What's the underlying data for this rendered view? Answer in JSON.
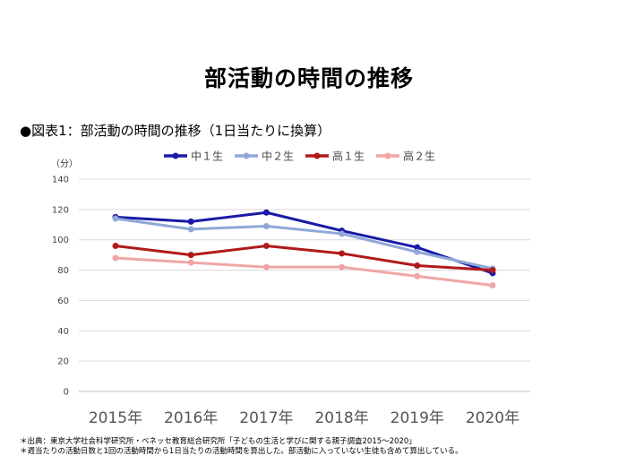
{
  "page": {
    "title": "部活動の時間の推移",
    "subtitle": "●図表1：部活動の時間の推移（1日当たりに換算）",
    "notes": [
      "＊出典：東京大学社会科学研究所・ベネッセ教育総合研究所「子どもの生活と学びに関する親子調査2015～2020」",
      "＊週当たりの活動日数と1回の活動時間から1日当たりの活動時間を算出した。部活動に入っていない生徒も含めて算出している。"
    ]
  },
  "chart_data": {
    "type": "line",
    "ylabel": "（分）",
    "ylim": [
      0,
      140
    ],
    "yticks": [
      0,
      20,
      40,
      60,
      80,
      100,
      120,
      140
    ],
    "categories": [
      "2015年",
      "2016年",
      "2017年",
      "2018年",
      "2019年",
      "2020年"
    ],
    "legend_position": "top",
    "grid": true,
    "series": [
      {
        "name": "中１生",
        "color": "#1a1aa6",
        "values": [
          115,
          112,
          118,
          106,
          95,
          78
        ]
      },
      {
        "name": "中２生",
        "color": "#8fa8d8",
        "values": [
          114,
          107,
          109,
          104,
          92,
          81
        ]
      },
      {
        "name": "高１生",
        "color": "#b01a1a",
        "values": [
          96,
          90,
          96,
          91,
          83,
          80
        ]
      },
      {
        "name": "高２生",
        "color": "#f0a6a6",
        "values": [
          88,
          85,
          82,
          82,
          76,
          70
        ]
      }
    ]
  }
}
